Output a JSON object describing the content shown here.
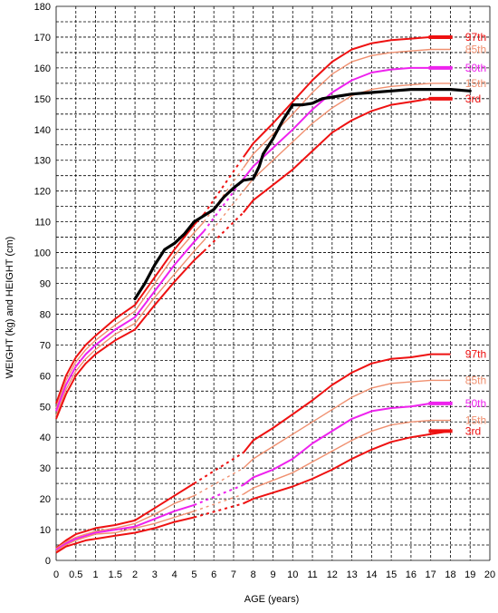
{
  "chart_data": {
    "type": "line",
    "xlabel": "AGE (years)",
    "ylabel": "WEIGHT (kg) and HEIGHT (cm)",
    "xlim": [
      0,
      20
    ],
    "ylim": [
      0,
      180
    ],
    "grid": true,
    "x_ticks": [
      {
        "value": 0,
        "label": "0"
      },
      {
        "value": 0.5,
        "label": "0.5"
      },
      {
        "value": 1,
        "label": "1"
      },
      {
        "value": 1.5,
        "label": "1.5"
      },
      {
        "value": 2,
        "label": "2"
      },
      {
        "value": 3,
        "label": "3"
      },
      {
        "value": 4,
        "label": "4"
      },
      {
        "value": 5,
        "label": "5"
      },
      {
        "value": 6,
        "label": "6"
      },
      {
        "value": 7,
        "label": "7"
      },
      {
        "value": 8,
        "label": "8"
      },
      {
        "value": 9,
        "label": "9"
      },
      {
        "value": 10,
        "label": "10"
      },
      {
        "value": 11,
        "label": "11"
      },
      {
        "value": 12,
        "label": "12"
      },
      {
        "value": 13,
        "label": "13"
      },
      {
        "value": 14,
        "label": "14"
      },
      {
        "value": 15,
        "label": "15"
      },
      {
        "value": 16,
        "label": "16"
      },
      {
        "value": 17,
        "label": "17"
      },
      {
        "value": 18,
        "label": "18"
      },
      {
        "value": 19,
        "label": "19"
      },
      {
        "value": 20,
        "label": "20"
      }
    ],
    "y_ticks": [
      "0",
      "10",
      "20",
      "30",
      "40",
      "50",
      "60",
      "70",
      "80",
      "90",
      "100",
      "110",
      "120",
      "130",
      "140",
      "150",
      "160",
      "170",
      "180"
    ],
    "colors": {
      "p3_97": "#ee1111",
      "p15_85": "#f09070",
      "p50": "#ee22ee",
      "patient": "#000000",
      "grid": "#000000"
    },
    "height_series": [
      {
        "label": "97th",
        "color_key": "p3_97",
        "early": [
          [
            0,
            51
          ],
          [
            0.25,
            60
          ],
          [
            0.5,
            66
          ],
          [
            0.75,
            70
          ],
          [
            1,
            73
          ],
          [
            1.5,
            78.5
          ],
          [
            2,
            83
          ],
          [
            3,
            92
          ],
          [
            4,
            101
          ],
          [
            5,
            109
          ],
          [
            5.5,
            112.5
          ]
        ],
        "late": [
          [
            7.5,
            131
          ],
          [
            8,
            135.5
          ],
          [
            9,
            142
          ],
          [
            10,
            149
          ],
          [
            11,
            156
          ],
          [
            12,
            162
          ],
          [
            13,
            166
          ],
          [
            14,
            168
          ],
          [
            15,
            169
          ],
          [
            16,
            169.5
          ],
          [
            17,
            170
          ],
          [
            18,
            170
          ]
        ],
        "marker": [
          17.5,
          170
        ],
        "label_y": 170
      },
      {
        "label": "85th",
        "color_key": "p15_85",
        "early": [
          [
            0,
            49.5
          ],
          [
            0.25,
            58.5
          ],
          [
            0.5,
            64.5
          ],
          [
            0.75,
            68.5
          ],
          [
            1,
            71.5
          ],
          [
            1.5,
            76.5
          ],
          [
            2,
            81
          ],
          [
            3,
            90
          ],
          [
            4,
            99
          ],
          [
            5,
            106.5
          ],
          [
            5.5,
            110
          ]
        ],
        "late": [
          [
            7.5,
            127.5
          ],
          [
            8,
            132
          ],
          [
            9,
            138.5
          ],
          [
            10,
            145
          ],
          [
            11,
            152
          ],
          [
            12,
            158
          ],
          [
            13,
            162
          ],
          [
            14,
            164
          ],
          [
            15,
            165
          ],
          [
            16,
            165.5
          ],
          [
            17,
            166
          ],
          [
            18,
            166
          ]
        ],
        "label_y": 166
      },
      {
        "label": "50th",
        "color_key": "p50",
        "early": [
          [
            0,
            48.5
          ],
          [
            0.25,
            57
          ],
          [
            0.5,
            63
          ],
          [
            0.75,
            67
          ],
          [
            1,
            70
          ],
          [
            1.5,
            75
          ],
          [
            2,
            79
          ],
          [
            3,
            87.5
          ],
          [
            4,
            96
          ],
          [
            5,
            103.5
          ],
          [
            5.5,
            107
          ]
        ],
        "late": [
          [
            7.5,
            124
          ],
          [
            8,
            128
          ],
          [
            9,
            134
          ],
          [
            10,
            140
          ],
          [
            11,
            146.5
          ],
          [
            12,
            152
          ],
          [
            13,
            156
          ],
          [
            14,
            158.5
          ],
          [
            15,
            159.5
          ],
          [
            16,
            160
          ],
          [
            17,
            160
          ],
          [
            18,
            160
          ]
        ],
        "marker": [
          17.5,
          160
        ],
        "label_y": 160
      },
      {
        "label": "15th",
        "color_key": "p15_85",
        "early": [
          [
            0,
            47
          ],
          [
            0.25,
            55.5
          ],
          [
            0.5,
            61.5
          ],
          [
            0.75,
            65.5
          ],
          [
            1,
            68.5
          ],
          [
            1.5,
            73.5
          ],
          [
            2,
            77
          ],
          [
            3,
            85.5
          ],
          [
            4,
            93
          ],
          [
            5,
            100.5
          ],
          [
            5.5,
            104
          ]
        ],
        "late": [
          [
            7.5,
            120
          ],
          [
            8,
            124
          ],
          [
            9,
            130
          ],
          [
            10,
            136
          ],
          [
            11,
            142
          ],
          [
            12,
            147
          ],
          [
            13,
            151
          ],
          [
            14,
            153
          ],
          [
            15,
            154
          ],
          [
            16,
            154.5
          ],
          [
            17,
            155
          ],
          [
            18,
            155
          ]
        ],
        "label_y": 155
      },
      {
        "label": "3rd",
        "color_key": "p3_97",
        "early": [
          [
            0,
            46
          ],
          [
            0.25,
            54
          ],
          [
            0.5,
            60
          ],
          [
            0.75,
            64
          ],
          [
            1,
            67
          ],
          [
            1.5,
            71.5
          ],
          [
            2,
            75
          ],
          [
            3,
            83
          ],
          [
            4,
            90.5
          ],
          [
            5,
            97.5
          ],
          [
            5.5,
            100.5
          ]
        ],
        "late": [
          [
            7.5,
            113
          ],
          [
            8,
            117
          ],
          [
            9,
            122
          ],
          [
            10,
            127
          ],
          [
            11,
            133
          ],
          [
            12,
            139
          ],
          [
            13,
            143
          ],
          [
            14,
            146
          ],
          [
            15,
            148
          ],
          [
            16,
            149
          ],
          [
            17,
            150
          ],
          [
            18,
            150
          ]
        ],
        "marker": [
          17.5,
          150
        ],
        "label_y": 150
      }
    ],
    "weight_series": [
      {
        "label": "97th",
        "color_key": "p3_97",
        "early": [
          [
            0,
            4
          ],
          [
            0.25,
            6.5
          ],
          [
            0.5,
            8.5
          ],
          [
            0.75,
            9.5
          ],
          [
            1,
            10.5
          ],
          [
            1.5,
            11.5
          ],
          [
            2,
            13
          ],
          [
            3,
            17
          ],
          [
            4,
            21
          ],
          [
            5,
            25
          ]
        ],
        "late": [
          [
            7.5,
            35
          ],
          [
            8,
            39
          ],
          [
            9,
            43
          ],
          [
            10,
            47.5
          ],
          [
            11,
            52
          ],
          [
            12,
            57
          ],
          [
            13,
            61
          ],
          [
            14,
            64
          ],
          [
            15,
            65.5
          ],
          [
            16,
            66
          ],
          [
            17,
            67
          ],
          [
            18,
            67
          ]
        ],
        "label_y": 67
      },
      {
        "label": "85th",
        "color_key": "p15_85",
        "early": [
          [
            0,
            3.8
          ],
          [
            0.25,
            6
          ],
          [
            0.5,
            7.5
          ],
          [
            0.75,
            8.5
          ],
          [
            1,
            9.5
          ],
          [
            1.5,
            10.5
          ],
          [
            2,
            12
          ],
          [
            3,
            15
          ],
          [
            4,
            18.5
          ],
          [
            5,
            21
          ]
        ],
        "late": [
          [
            7.5,
            30
          ],
          [
            8,
            33
          ],
          [
            9,
            37
          ],
          [
            10,
            41
          ],
          [
            11,
            45
          ],
          [
            12,
            49
          ],
          [
            13,
            53
          ],
          [
            14,
            56
          ],
          [
            15,
            57.5
          ],
          [
            16,
            58
          ],
          [
            17,
            58.5
          ],
          [
            18,
            58.5
          ]
        ],
        "label_y": 58.5
      },
      {
        "label": "50th",
        "color_key": "p50",
        "early": [
          [
            0,
            3.4
          ],
          [
            0.25,
            5.5
          ],
          [
            0.5,
            7
          ],
          [
            0.75,
            8
          ],
          [
            1,
            9
          ],
          [
            1.5,
            10
          ],
          [
            2,
            11
          ],
          [
            3,
            13.5
          ],
          [
            4,
            16
          ],
          [
            5,
            18
          ]
        ],
        "late": [
          [
            7.5,
            24.5
          ],
          [
            8,
            27
          ],
          [
            9,
            29.5
          ],
          [
            10,
            33
          ],
          [
            11,
            38
          ],
          [
            12,
            42
          ],
          [
            13,
            46
          ],
          [
            14,
            48.5
          ],
          [
            15,
            49.5
          ],
          [
            16,
            50
          ],
          [
            17,
            51
          ],
          [
            18,
            51
          ]
        ],
        "marker": [
          17.5,
          51
        ],
        "label_y": 51
      },
      {
        "label": "15th",
        "color_key": "p15_85",
        "early": [
          [
            0,
            3
          ],
          [
            0.25,
            5
          ],
          [
            0.5,
            6.5
          ],
          [
            0.75,
            7.5
          ],
          [
            1,
            8.5
          ],
          [
            1.5,
            9
          ],
          [
            2,
            10.5
          ],
          [
            3,
            12
          ],
          [
            4,
            14
          ],
          [
            5,
            16
          ]
        ],
        "late": [
          [
            7.5,
            21.5
          ],
          [
            8,
            23.5
          ],
          [
            9,
            26
          ],
          [
            10,
            28.5
          ],
          [
            11,
            32
          ],
          [
            12,
            35.5
          ],
          [
            13,
            39
          ],
          [
            14,
            42
          ],
          [
            15,
            44
          ],
          [
            16,
            45
          ],
          [
            17,
            45.5
          ],
          [
            18,
            45.5
          ]
        ],
        "label_y": 45.5
      },
      {
        "label": "3rd",
        "color_key": "p3_97",
        "early": [
          [
            0,
            2.5
          ],
          [
            0.25,
            4.5
          ],
          [
            0.5,
            5.5
          ],
          [
            0.75,
            6.5
          ],
          [
            1,
            7
          ],
          [
            1.5,
            8
          ],
          [
            2,
            9
          ],
          [
            3,
            10.5
          ],
          [
            4,
            12.5
          ],
          [
            5,
            14
          ]
        ],
        "late": [
          [
            7.5,
            18.5
          ],
          [
            8,
            20
          ],
          [
            9,
            22
          ],
          [
            10,
            24
          ],
          [
            11,
            26.5
          ],
          [
            12,
            29.5
          ],
          [
            13,
            33
          ],
          [
            14,
            36
          ],
          [
            15,
            38.5
          ],
          [
            16,
            40
          ],
          [
            17,
            41
          ],
          [
            18,
            42
          ]
        ],
        "marker": [
          17.5,
          42
        ],
        "label_y": 42
      }
    ],
    "patient_height": [
      [
        2,
        85
      ],
      [
        2.5,
        90
      ],
      [
        3,
        96
      ],
      [
        3.5,
        101
      ],
      [
        4,
        103
      ],
      [
        4.5,
        106
      ],
      [
        5,
        110
      ],
      [
        5.5,
        112
      ],
      [
        6,
        114
      ],
      [
        6.5,
        118
      ],
      [
        7,
        121
      ],
      [
        7.5,
        123.5
      ],
      [
        8,
        124
      ],
      [
        8.3,
        128
      ],
      [
        8.5,
        132
      ],
      [
        9,
        137
      ],
      [
        9.5,
        143
      ],
      [
        10,
        148
      ],
      [
        10.5,
        148
      ],
      [
        11,
        148.5
      ],
      [
        11.5,
        150
      ],
      [
        12,
        150.5
      ],
      [
        13,
        151.5
      ],
      [
        14,
        152
      ],
      [
        15,
        152.5
      ],
      [
        16,
        153
      ],
      [
        17,
        153
      ],
      [
        18,
        153
      ],
      [
        19,
        152.5
      ]
    ]
  }
}
